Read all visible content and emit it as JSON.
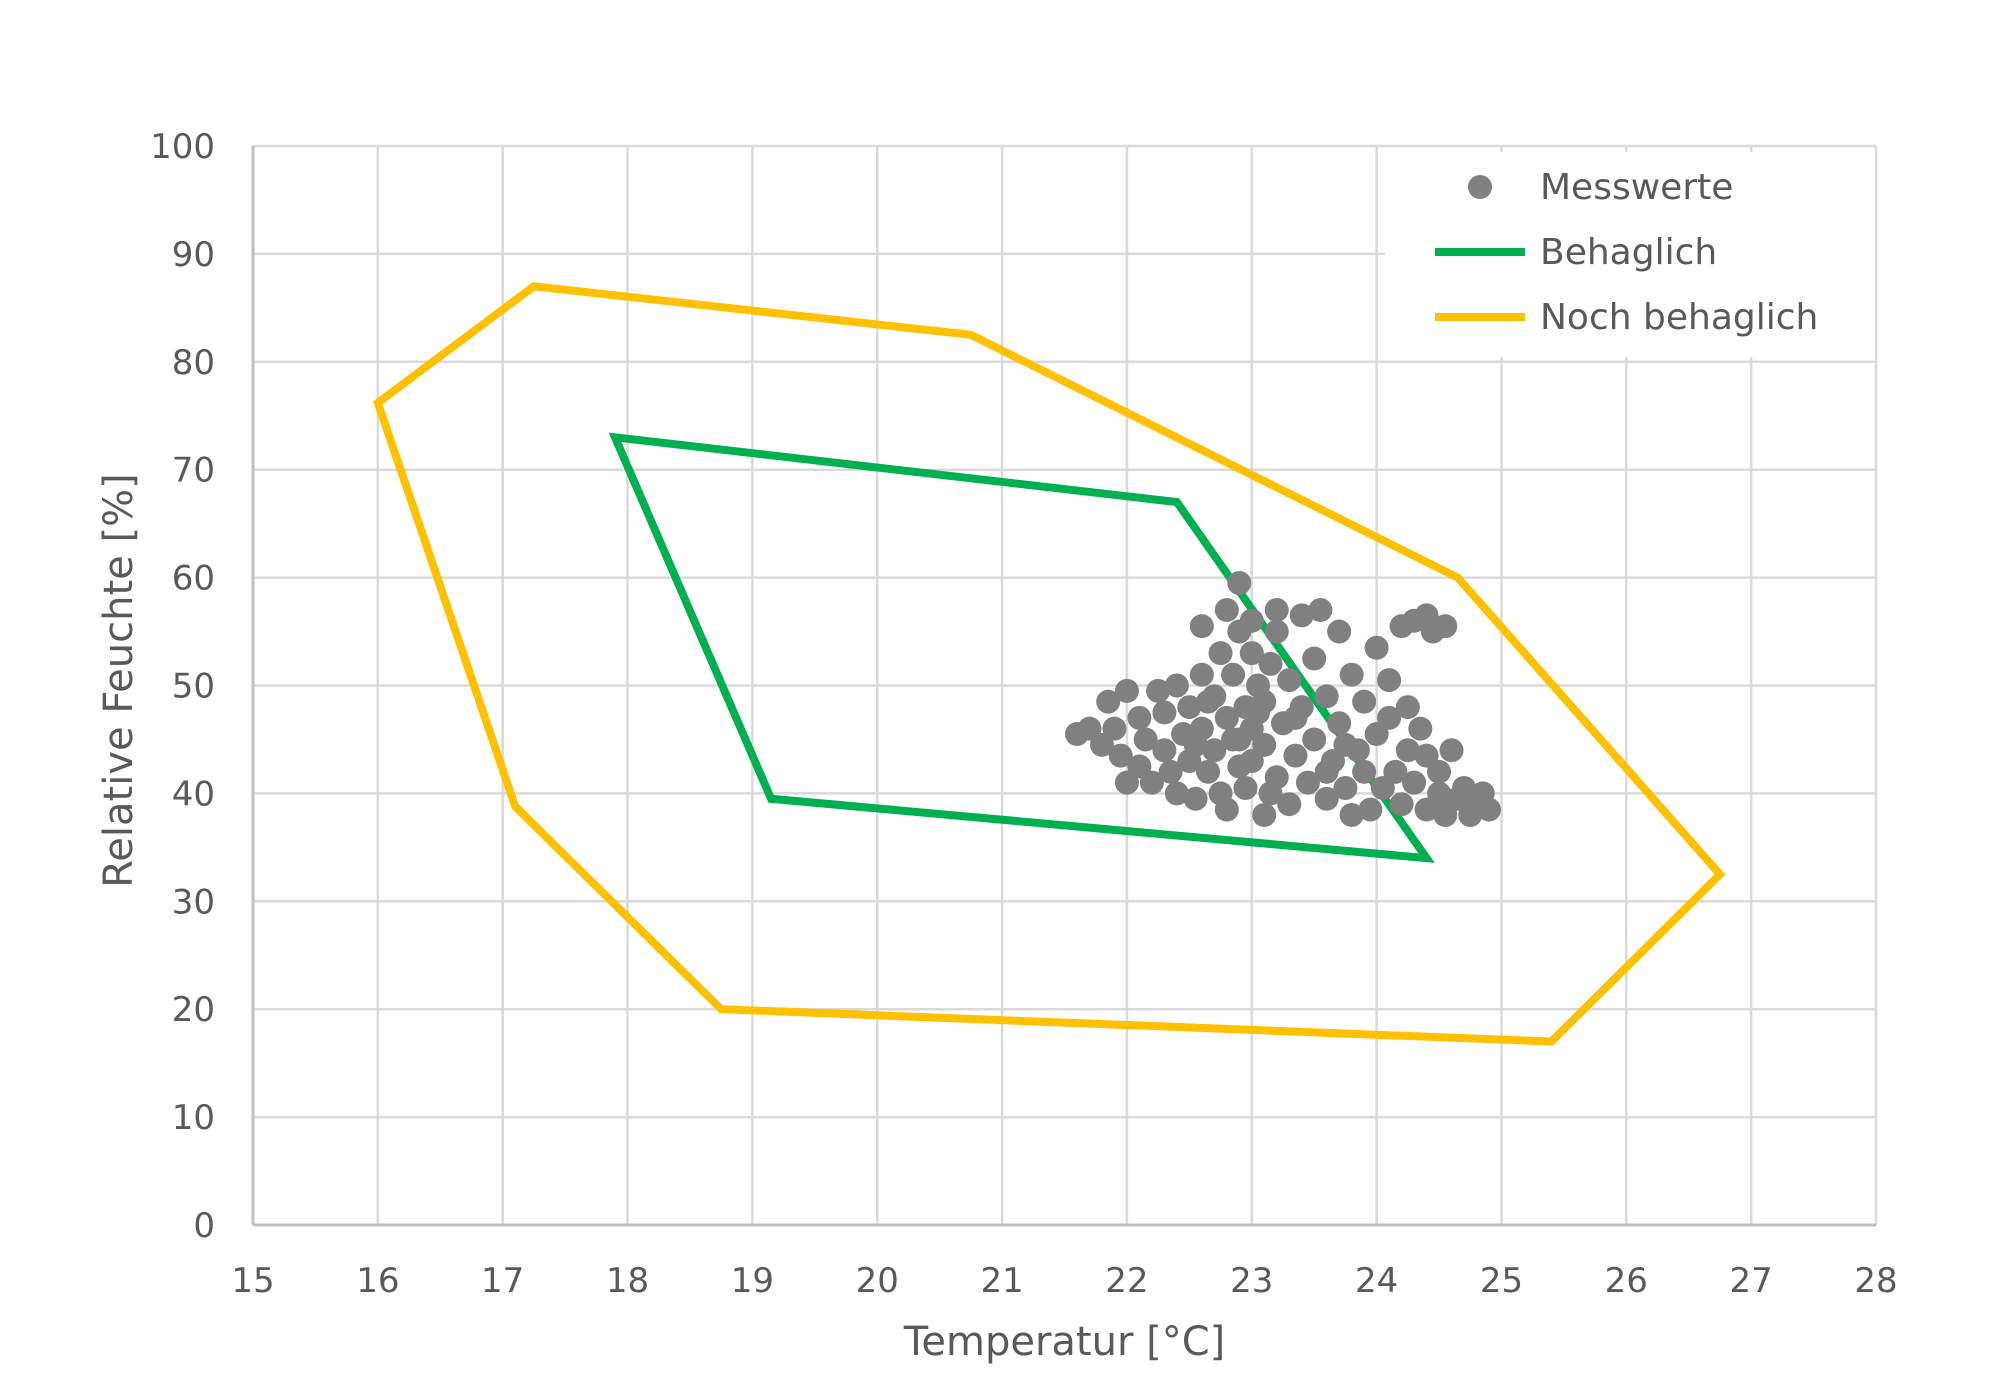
{
  "chart_data": {
    "type": "scatter",
    "title": "",
    "xlabel": "Temperatur [°C]",
    "ylabel": "Relative Feuchte [%]",
    "xlim": [
      15,
      28
    ],
    "ylim": [
      0,
      100
    ],
    "x_ticks": [
      "15",
      "16",
      "17",
      "18",
      "19",
      "20",
      "21",
      "22",
      "23",
      "24",
      "25",
      "26",
      "27",
      "28"
    ],
    "y_ticks": [
      "0",
      "10",
      "20",
      "30",
      "40",
      "50",
      "60",
      "70",
      "80",
      "90",
      "100"
    ],
    "grid": true,
    "legend_position": "top-right",
    "legend": [
      "Messwerte",
      "Behaglich",
      "Noch behaglich"
    ],
    "series": [
      {
        "name": "Messwerte",
        "kind": "scatter",
        "color": "#808080",
        "points": [
          [
            21.6,
            45.5
          ],
          [
            21.7,
            46
          ],
          [
            21.8,
            44.5
          ],
          [
            21.85,
            48.5
          ],
          [
            21.9,
            46
          ],
          [
            21.95,
            43.5
          ],
          [
            22,
            49.5
          ],
          [
            22.0,
            41
          ],
          [
            22.1,
            47
          ],
          [
            22.1,
            42.5
          ],
          [
            22.15,
            45
          ],
          [
            22.2,
            41
          ],
          [
            22.25,
            49.5
          ],
          [
            22.3,
            44
          ],
          [
            22.3,
            47.5
          ],
          [
            22.35,
            42
          ],
          [
            22.4,
            40
          ],
          [
            22.4,
            50
          ],
          [
            22.45,
            45.5
          ],
          [
            22.5,
            43
          ],
          [
            22.5,
            48
          ],
          [
            22.55,
            39.5
          ],
          [
            22.6,
            46
          ],
          [
            22.6,
            51
          ],
          [
            22.6,
            55.5
          ],
          [
            22.65,
            42
          ],
          [
            22.7,
            44
          ],
          [
            22.7,
            49
          ],
          [
            22.75,
            40
          ],
          [
            22.75,
            53
          ],
          [
            22.8,
            47
          ],
          [
            22.8,
            38.5
          ],
          [
            22.8,
            57
          ],
          [
            22.85,
            45
          ],
          [
            22.85,
            51
          ],
          [
            22.9,
            42.5
          ],
          [
            22.9,
            59.5
          ],
          [
            22.9,
            55
          ],
          [
            22.95,
            48
          ],
          [
            22.95,
            40.5
          ],
          [
            23.0,
            46
          ],
          [
            23.0,
            53
          ],
          [
            23.0,
            43
          ],
          [
            23.0,
            56
          ],
          [
            23.05,
            50
          ],
          [
            23.1,
            38
          ],
          [
            23.1,
            44.5
          ],
          [
            23.1,
            48.5
          ],
          [
            23.15,
            52
          ],
          [
            23.2,
            41.5
          ],
          [
            23.2,
            55
          ],
          [
            23.25,
            46.5
          ],
          [
            23.3,
            39
          ],
          [
            23.3,
            50.5
          ],
          [
            23.35,
            43.5
          ],
          [
            23.4,
            56.5
          ],
          [
            23.4,
            48
          ],
          [
            23.45,
            41
          ],
          [
            23.5,
            52.5
          ],
          [
            23.5,
            45
          ],
          [
            23.55,
            57
          ],
          [
            23.6,
            39.5
          ],
          [
            23.6,
            49
          ],
          [
            23.65,
            43
          ],
          [
            23.7,
            55
          ],
          [
            23.7,
            46.5
          ],
          [
            23.75,
            40.5
          ],
          [
            23.8,
            38
          ],
          [
            23.8,
            51
          ],
          [
            23.85,
            44
          ],
          [
            23.9,
            48.5
          ],
          [
            23.9,
            42
          ],
          [
            23.95,
            38.5
          ],
          [
            24.0,
            45.5
          ],
          [
            24.0,
            53.5
          ],
          [
            24.05,
            40.5
          ],
          [
            24.1,
            47
          ],
          [
            24.1,
            50.5
          ],
          [
            24.15,
            42
          ],
          [
            24.2,
            39
          ],
          [
            24.2,
            55.5
          ],
          [
            24.25,
            44
          ],
          [
            24.3,
            41
          ],
          [
            24.3,
            56
          ],
          [
            24.35,
            46
          ],
          [
            24.4,
            38.5
          ],
          [
            24.4,
            43.5
          ],
          [
            24.45,
            55
          ],
          [
            24.5,
            42
          ],
          [
            24.5,
            40
          ],
          [
            24.55,
            38
          ],
          [
            24.6,
            44
          ],
          [
            24.65,
            39.5
          ],
          [
            24.7,
            40.5
          ],
          [
            24.75,
            38
          ],
          [
            24.8,
            39
          ],
          [
            24.85,
            40
          ],
          [
            24.9,
            38.5
          ],
          [
            24.4,
            56.5
          ],
          [
            24.55,
            55.5
          ],
          [
            23.2,
            57
          ],
          [
            22.9,
            45
          ],
          [
            23.05,
            47.5
          ],
          [
            23.15,
            40
          ],
          [
            22.65,
            48.5
          ],
          [
            22.55,
            44.5
          ],
          [
            23.35,
            47
          ],
          [
            23.6,
            42
          ],
          [
            23.75,
            44.5
          ],
          [
            24.25,
            48
          ]
        ]
      },
      {
        "name": "Behaglich",
        "kind": "polygon",
        "color": "#00b050",
        "points": [
          [
            17.9,
            73
          ],
          [
            22.4,
            67
          ],
          [
            24.4,
            34
          ],
          [
            19.15,
            39.5
          ]
        ]
      },
      {
        "name": "Noch behaglich",
        "kind": "polygon",
        "color": "#ffc000",
        "points": [
          [
            16,
            76.2
          ],
          [
            17.25,
            87
          ],
          [
            20.75,
            82.5
          ],
          [
            24.65,
            60
          ],
          [
            26.75,
            32.5
          ],
          [
            25.4,
            17
          ],
          [
            18.75,
            20
          ],
          [
            17.1,
            38.8
          ]
        ]
      }
    ]
  }
}
